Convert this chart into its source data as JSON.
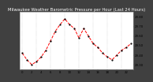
{
  "title": "Milwaukee Weather Barometric Pressure per Hour (Last 24 Hours)",
  "hours": [
    0,
    1,
    2,
    3,
    4,
    5,
    6,
    7,
    8,
    9,
    10,
    11,
    12,
    13,
    14,
    15,
    16,
    17,
    18,
    19,
    20,
    21,
    22,
    23
  ],
  "pressure": [
    29.42,
    29.35,
    29.3,
    29.33,
    29.38,
    29.45,
    29.55,
    29.65,
    29.72,
    29.78,
    29.72,
    29.68,
    29.58,
    29.68,
    29.6,
    29.52,
    29.48,
    29.42,
    29.38,
    29.35,
    29.4,
    29.45,
    29.48,
    29.52
  ],
  "ylim": [
    29.25,
    29.85
  ],
  "ytick_vals": [
    29.3,
    29.4,
    29.5,
    29.6,
    29.7,
    29.8
  ],
  "ytick_labels": [
    "29.30",
    "29.40",
    "29.50",
    "29.60",
    "29.70",
    "29.80"
  ],
  "xlim": [
    -0.5,
    23.5
  ],
  "xticks": [
    0,
    2,
    4,
    6,
    8,
    10,
    12,
    14,
    16,
    18,
    20,
    22
  ],
  "vgrid_x": [
    0,
    3,
    6,
    9,
    12,
    15,
    18,
    21
  ],
  "outer_bg": "#404040",
  "plot_bg": "#ffffff",
  "line_color": "#ff0000",
  "marker_color": "#000000",
  "title_fontsize": 3.8,
  "tick_fontsize": 2.8,
  "line_width": 0.7,
  "marker_size": 1.2
}
